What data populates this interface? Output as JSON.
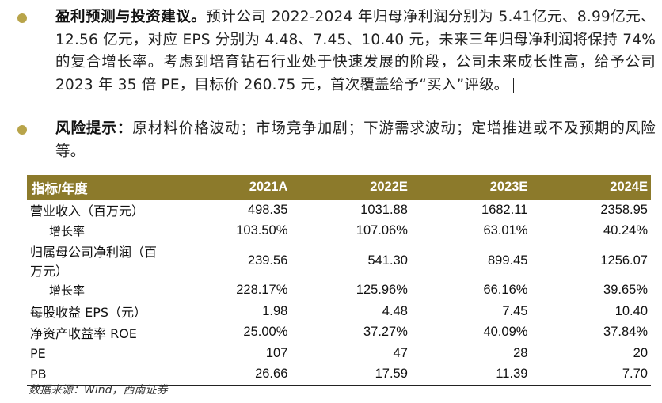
{
  "bullets": [
    {
      "title": "盈利预测与投资建议。",
      "text": "预计公司 2022-2024 年归母净利润分别为 5.41亿元、8.99亿元、12.56 亿元，对应 EPS 分别为 4.48、7.45、10.40 元，未来三年归母净利润将保持 74%的复合增长率。考虑到培育钻石行业处于快速发展的阶段，公司未来成长性高，给予公司 2023 年 35 倍 PE，目标价 260.75 元，首次覆盖给予“买入”评级。"
    },
    {
      "title": "风险提示：",
      "text": "原材料价格波动；市场竞争加剧；下游需求波动；定增推进或不及预期的风险等。"
    }
  ],
  "table": {
    "headers": [
      "指标/年度",
      "2021A",
      "2022E",
      "2023E",
      "2024E"
    ],
    "rows": [
      {
        "label": "营业收入（百万元）",
        "values": [
          "498.35",
          "1031.88",
          "1682.11",
          "2358.95"
        ]
      },
      {
        "label": "增长率",
        "values": [
          "103.50%",
          "107.06%",
          "63.01%",
          "40.24%"
        ]
      },
      {
        "label": "归属母公司净利润（百万元）",
        "values": [
          "239.56",
          "541.30",
          "899.45",
          "1256.07"
        ]
      },
      {
        "label": "增长率",
        "values": [
          "228.17%",
          "125.96%",
          "66.16%",
          "39.65%"
        ]
      },
      {
        "label": "每股收益 EPS（元）",
        "values": [
          "1.98",
          "4.48",
          "7.45",
          "10.40"
        ]
      },
      {
        "label": "净资产收益率 ROE",
        "values": [
          "25.00%",
          "37.27%",
          "40.09%",
          "37.84%"
        ]
      },
      {
        "label": "PE",
        "values": [
          "107",
          "47",
          "28",
          "20"
        ]
      },
      {
        "label": "PB",
        "values": [
          "26.66",
          "17.59",
          "11.39",
          "7.70"
        ]
      }
    ]
  },
  "source": "数据来源：Wind，西南证券",
  "colors": {
    "accent": "#8c7a2b",
    "bullet": "#b8a44a"
  }
}
